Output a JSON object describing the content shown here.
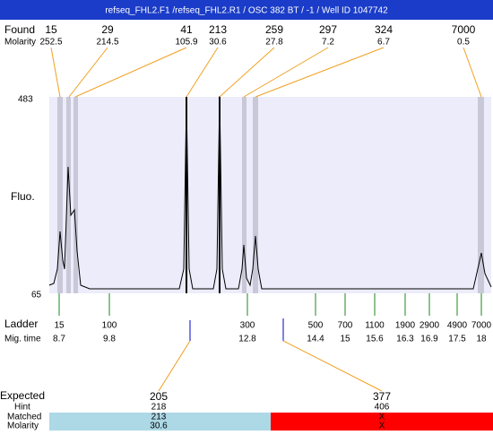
{
  "header": {
    "title": "refseq_FHL2.F1 /refseq_FHL2.R1 / OSC 382 BT / -1 / Well ID 1047742"
  },
  "found": {
    "label": "Found",
    "sublabel": "Molarity",
    "peaks": [
      {
        "size": "15",
        "molarity": "252.5"
      },
      {
        "size": "29",
        "molarity": "214.5"
      },
      {
        "size": "41",
        "molarity": "105.9"
      },
      {
        "size": "213",
        "molarity": "30.6"
      },
      {
        "size": "259",
        "molarity": "27.8"
      },
      {
        "size": "297",
        "molarity": "7.2"
      },
      {
        "size": "324",
        "molarity": "6.7"
      },
      {
        "size": "7000",
        "molarity": "0.5"
      }
    ]
  },
  "plot": {
    "y_axis_label": "Fluo.",
    "y_top": "483",
    "y_bottom": "65"
  },
  "ladder": {
    "label": "Ladder",
    "sublabel": "Mig. time",
    "entries": [
      {
        "size": "15",
        "time": "8.7"
      },
      {
        "size": "100",
        "time": "9.8"
      },
      {
        "size": "300",
        "time": "12.8"
      },
      {
        "size": "500",
        "time": "14.4"
      },
      {
        "size": "700",
        "time": "15"
      },
      {
        "size": "1100",
        "time": "15.6"
      },
      {
        "size": "1900",
        "time": "16.3"
      },
      {
        "size": "2900",
        "time": "16.9"
      },
      {
        "size": "4900",
        "time": "17.5"
      },
      {
        "size": "7000",
        "time": "18"
      }
    ]
  },
  "expected": {
    "label": "Expected",
    "hint_label": "Hint",
    "matched_label": "Matched",
    "molarity_label": "Molarity",
    "items": [
      {
        "expected": "205",
        "hint": "218",
        "matched": "213",
        "molarity": "30.6"
      },
      {
        "expected": "377",
        "hint": "406",
        "matched": "X",
        "molarity": "X"
      }
    ]
  }
}
